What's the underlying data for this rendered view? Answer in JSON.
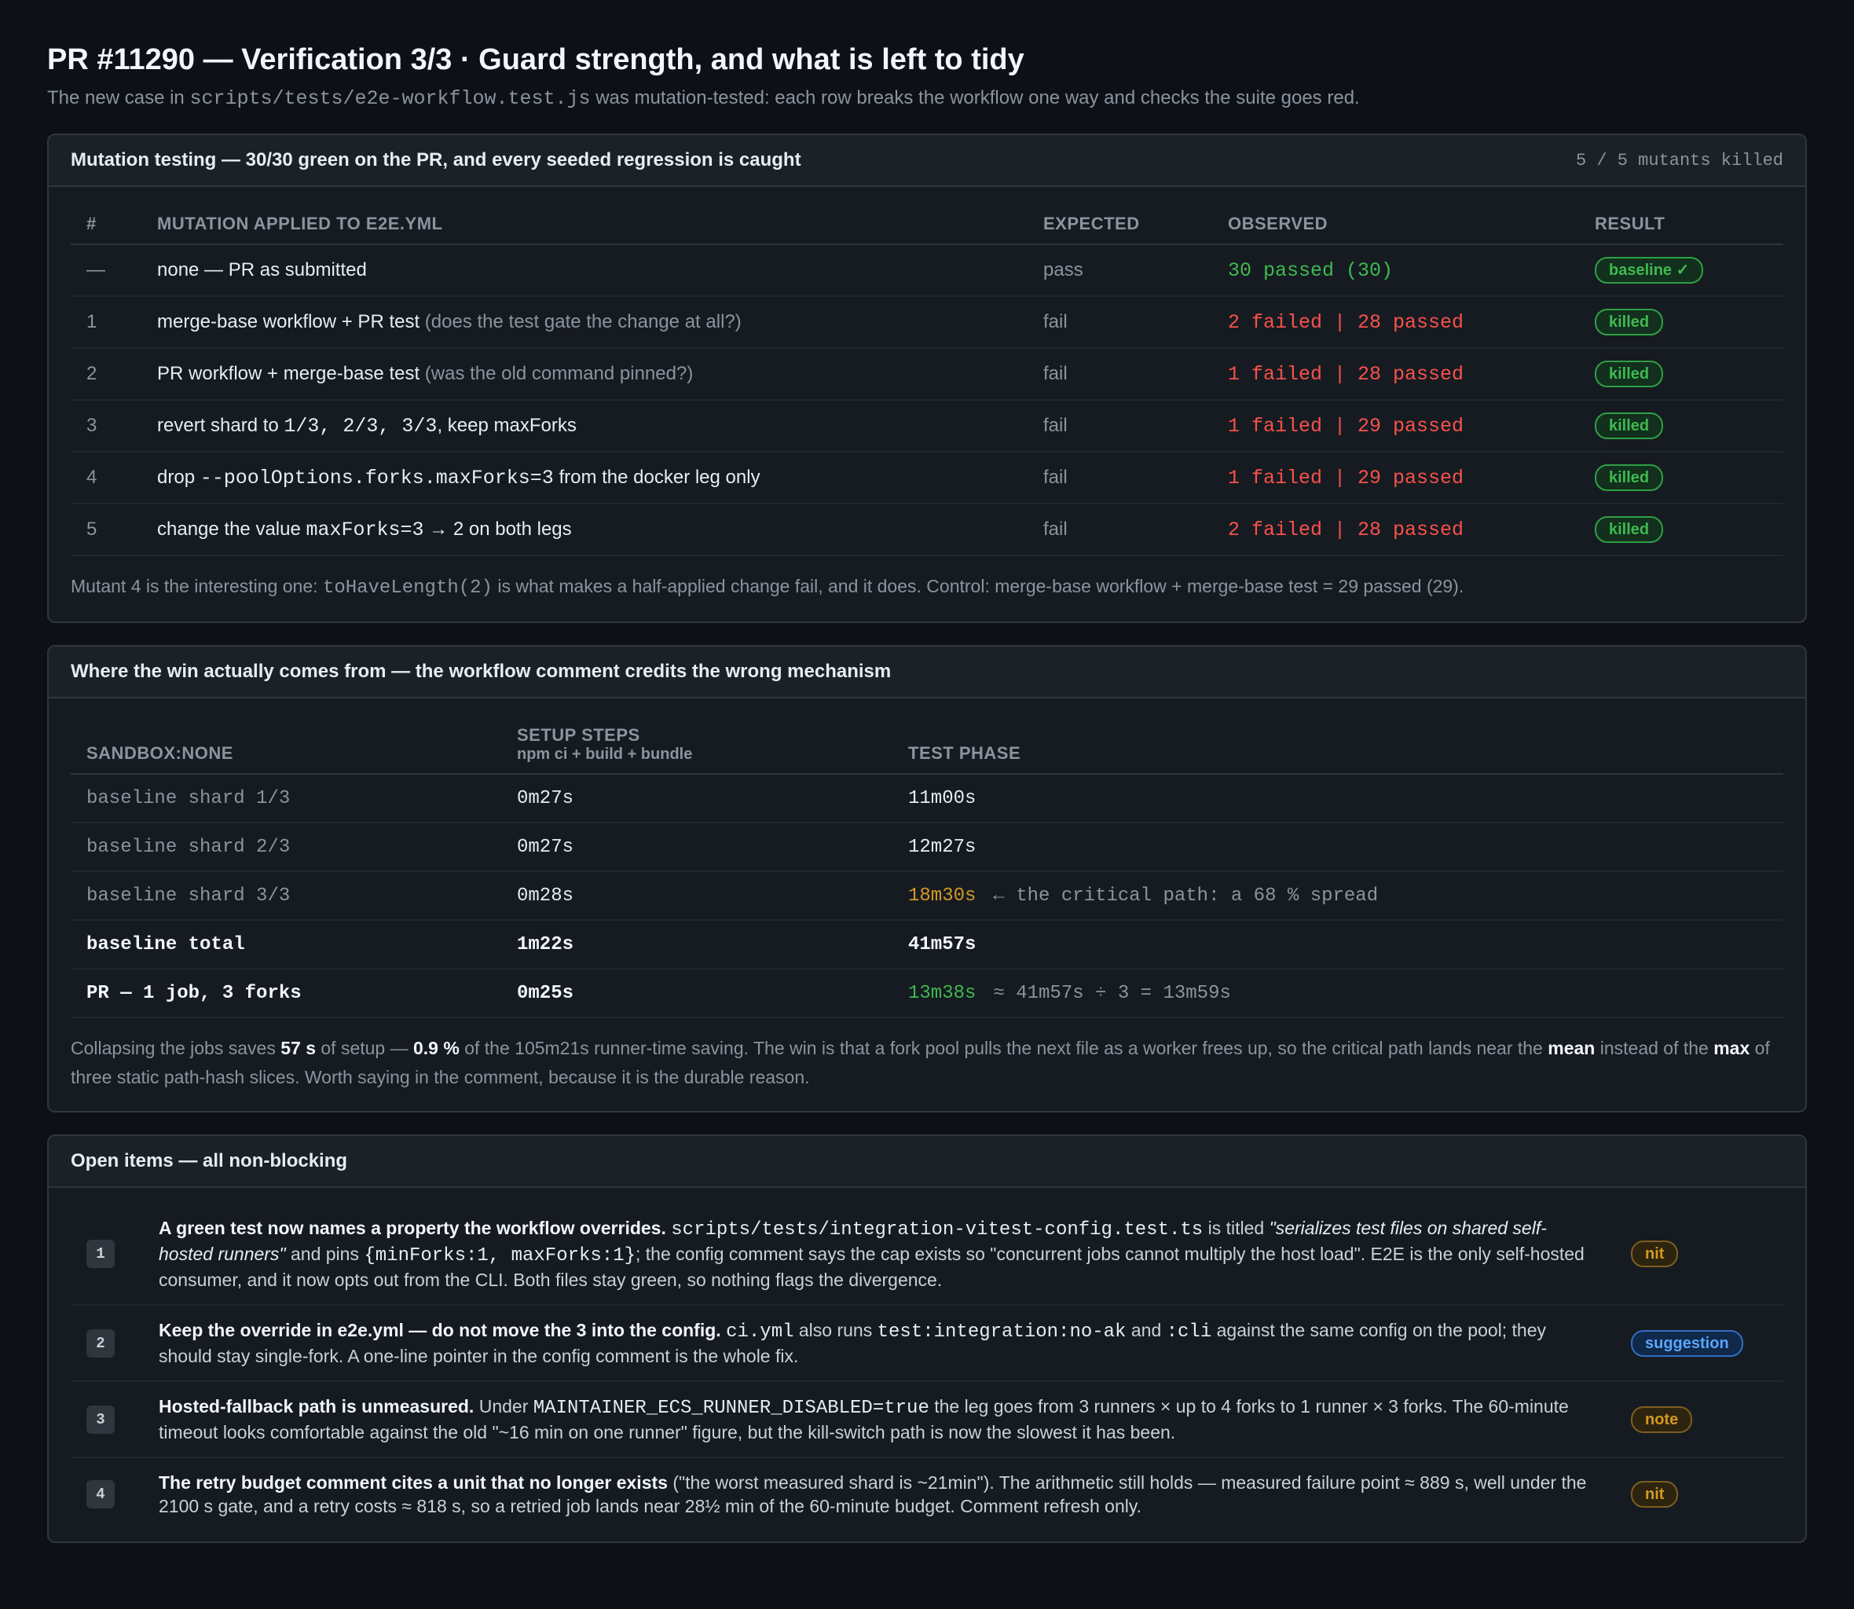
{
  "header": {
    "title": "PR #11290 — Verification 3/3 · Guard strength, and what is left to tidy",
    "subtitle_pre": "The new case in ",
    "subtitle_code": "scripts/tests/e2e-workflow.test.js",
    "subtitle_post": " was mutation-tested: each row breaks the workflow one way and checks the suite goes red."
  },
  "mutation": {
    "title": "Mutation testing — 30/30 green on the PR, and every seeded regression is caught",
    "meta": "5 / 5 mutants killed",
    "columns": [
      "#",
      "MUTATION APPLIED TO E2E.YML",
      "EXPECTED",
      "OBSERVED",
      "RESULT"
    ],
    "rows": [
      {
        "num": "—",
        "pre": "none — PR as submitted",
        "code": "",
        "post": "",
        "hint": "",
        "expected": "pass",
        "observed": "30 passed (30)",
        "status": "pass",
        "result": "baseline ✓"
      },
      {
        "num": "1",
        "pre": "merge-base workflow + PR test ",
        "code": "",
        "post": "",
        "hint": "(does the test gate the change at all?)",
        "expected": "fail",
        "observed": "2 failed | 28 passed",
        "status": "fail",
        "result": "killed"
      },
      {
        "num": "2",
        "pre": "PR workflow + merge-base test ",
        "code": "",
        "post": "",
        "hint": "(was the old command pinned?)",
        "expected": "fail",
        "observed": "1 failed | 28 passed",
        "status": "fail",
        "result": "killed"
      },
      {
        "num": "3",
        "pre": "revert shard to ",
        "code": "1/3, 2/3, 3/3",
        "post": ", keep maxForks",
        "hint": "",
        "expected": "fail",
        "observed": "1 failed | 29 passed",
        "status": "fail",
        "result": "killed"
      },
      {
        "num": "4",
        "pre": "drop ",
        "code": "--poolOptions.forks.maxForks=3",
        "post": " from the docker leg only",
        "hint": "",
        "expected": "fail",
        "observed": "1 failed | 29 passed",
        "status": "fail",
        "result": "killed"
      },
      {
        "num": "5",
        "pre": "change the value ",
        "code": "maxForks=3",
        "post": " → 2 on both legs",
        "hint": "",
        "expected": "fail",
        "observed": "2 failed | 28 passed",
        "status": "fail",
        "result": "killed"
      }
    ],
    "footnote_pre": "Mutant 4 is the interesting one: ",
    "footnote_code": "toHaveLength(2)",
    "footnote_post": " is what makes a half-applied change fail, and it does. Control: merge-base workflow + merge-base test = 29 passed (29)."
  },
  "timing": {
    "title": "Where the win actually comes from — the workflow comment credits the wrong mechanism",
    "col1": "SANDBOX:NONE",
    "col2": "SETUP STEPS",
    "col2_sub": "npm ci + build + bundle",
    "col3": "TEST PHASE",
    "rows": [
      {
        "label": "baseline shard 1/3",
        "setup": "0m27s",
        "test": "11m00s",
        "note": "",
        "style": "dim",
        "test_color": ""
      },
      {
        "label": "baseline shard 2/3",
        "setup": "0m27s",
        "test": "12m27s",
        "note": "",
        "style": "dim",
        "test_color": ""
      },
      {
        "label": "baseline shard 3/3",
        "setup": "0m28s",
        "test": "18m30s",
        "note": "← the critical path: a 68 % spread",
        "style": "dim",
        "test_color": "amber"
      },
      {
        "label": "baseline total",
        "setup": "1m22s",
        "test": "41m57s",
        "note": "",
        "style": "bold",
        "test_color": ""
      },
      {
        "label": "PR — 1 job, 3 forks",
        "setup": "0m25s",
        "test": "13m38s",
        "note": "≈ 41m57s ÷ 3 = 13m59s",
        "style": "bold",
        "test_color": "green"
      }
    ],
    "footnote": {
      "t1": "Collapsing the jobs saves ",
      "b1": "57 s",
      "t2": " of setup — ",
      "b2": "0.9 %",
      "t3": " of the 105m21s runner-time saving. The win is that a fork pool pulls the next file as a worker frees up, so the critical path lands near the ",
      "b3": "mean",
      "t4": " instead of the ",
      "b4": "max",
      "t5": " of three static path-hash slices. Worth saying in the comment, because it is the durable reason."
    }
  },
  "open_items": {
    "title": "Open items — all non-blocking",
    "items": [
      {
        "num": "1",
        "bold": "A green test now names a property the workflow overrides.",
        "code1": "scripts/tests/integration-vitest-config.test.ts",
        "t1": " is titled ",
        "italic": "\"serializes test files on shared self-hosted runners\"",
        "t2": " and pins ",
        "code2": "{minForks:1, maxForks:1}",
        "t3": "; the config comment says the cap exists so \"concurrent jobs cannot multiply the host load\". E2E is the only self-hosted consumer, and it now opts out from the CLI. Both files stay green, so nothing flags the divergence.",
        "tag": "nit"
      },
      {
        "num": "2",
        "bold": "Keep the override in e2e.yml — do not move the 3 into the config.",
        "code1": "ci.yml",
        "t1": " also runs ",
        "code2": "test:integration:no-ak",
        "t2": " and ",
        "code3": ":cli",
        "t3": " against the same config on the pool; they should stay single-fork. A one-line pointer in the config comment is the whole fix.",
        "tag": "suggestion"
      },
      {
        "num": "3",
        "bold": "Hosted-fallback path is unmeasured.",
        "t0": " Under ",
        "code1": "MAINTAINER_ECS_RUNNER_DISABLED=true",
        "t1": " the leg goes from 3 runners × up to 4 forks to 1 runner × 3 forks. The 60-minute timeout looks comfortable against the old \"~16 min on one runner\" figure, but the kill-switch path is now the slowest it has been.",
        "tag": "note"
      },
      {
        "num": "4",
        "bold": "The retry budget comment cites a unit that no longer exists",
        "t1": " (\"the worst measured shard is ~21min\"). The arithmetic still holds — measured failure point ≈ 889 s, well under the 2100 s gate, and a retry costs ≈ 818 s, so a retried job lands near 28½ min of the 60-minute budget. Comment refresh only.",
        "tag": "nit"
      }
    ]
  }
}
